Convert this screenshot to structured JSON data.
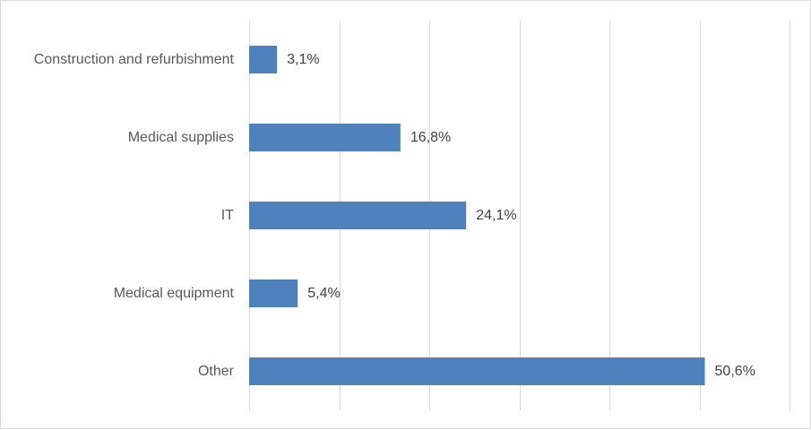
{
  "chart_data": {
    "type": "bar",
    "orientation": "horizontal",
    "categories": [
      "Construction and refurbishment",
      "Medical supplies",
      "IT",
      "Medical equipment",
      "Other"
    ],
    "values": [
      3.1,
      16.8,
      24.1,
      5.4,
      50.6
    ],
    "value_labels": [
      "3,1%",
      "16,8%",
      "24,1%",
      "5,4%",
      "50,6%"
    ],
    "unit": "%",
    "xlim": [
      0,
      60
    ],
    "gridlines": true,
    "legend": "none",
    "bar_color": "#4f81bd",
    "title": "",
    "xlabel": "",
    "ylabel": ""
  }
}
